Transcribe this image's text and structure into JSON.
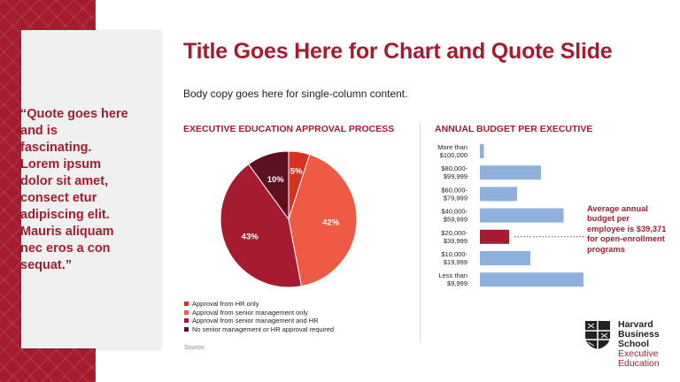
{
  "slide": {
    "title": "Title Goes Here for Chart and Quote Slide",
    "body_copy": "Body copy goes here for single-column content.",
    "quote": "“Quote goes here and is fascinating. Lorem ipsum dolor sit amet, consect etur adipiscing elit. Mauris aliquam nec eros a con sequat.”",
    "source_label": "Source:",
    "annotation": "Average annual budget per employee is $39,371 for open-enrollment programs"
  },
  "logo": {
    "line1": "Harvard",
    "line2": "Business",
    "line3": "School",
    "line4": "Executive",
    "line5": "Education"
  },
  "colors": {
    "brand": "#a51c30",
    "bar": "#8fb0dc",
    "bar_highlight": "#a51c30"
  },
  "chart_data": [
    {
      "type": "pie",
      "title": "EXECUTIVE EDUCATION APPROVAL PROCESS",
      "slices": [
        {
          "label": "Approval from HR only",
          "value": 5,
          "display": "5%",
          "color": "#d6321f"
        },
        {
          "label": "Approval from senior management only",
          "value": 42,
          "display": "42%",
          "color": "#ef5a45"
        },
        {
          "label": "Approval from senior management and HR",
          "value": 43,
          "display": "43%",
          "color": "#a51c30"
        },
        {
          "label": "No senior management or HR approval required",
          "value": 10,
          "display": "10%",
          "color": "#5c1020"
        }
      ]
    },
    {
      "type": "bar",
      "orientation": "horizontal",
      "title": "ANNUAL BUDGET PER EXECUTIVE",
      "categories": [
        [
          "More than",
          "$100,000"
        ],
        [
          "$80,000-",
          "$99,999"
        ],
        [
          "$60,000-",
          "$79,999"
        ],
        [
          "$40,000-",
          "$59,999"
        ],
        [
          "$20,000-",
          "$39,999"
        ],
        [
          "$10,000-",
          "$19,999"
        ],
        [
          "Less than",
          "$9,999"
        ]
      ],
      "values": [
        3,
        46,
        28,
        63,
        22,
        38,
        78
      ],
      "highlight_index": 4,
      "xlim": [
        0,
        80
      ]
    }
  ]
}
